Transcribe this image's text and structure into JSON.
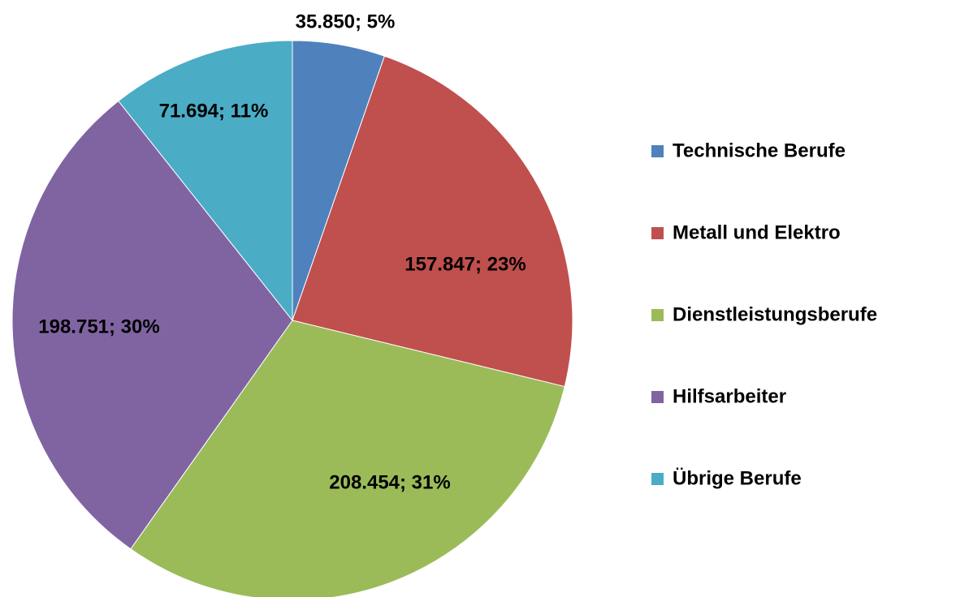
{
  "chart_data": {
    "type": "pie",
    "categories": [
      "Technische Berufe",
      "Metall und Elektro",
      "Dienstleistungsberufe",
      "Hilfsarbeiter",
      "Übrige Berufe"
    ],
    "values": [
      35850,
      157847,
      208454,
      198751,
      71694
    ],
    "value_labels": [
      "35.850; 5%",
      "157.847; 23%",
      "208.454; 31%",
      "198.751; 30%",
      "71.694; 11%"
    ],
    "colors": [
      "#4f81bd",
      "#c0504d",
      "#9bbb59",
      "#8064a2",
      "#4bacc6"
    ],
    "legend": "right"
  }
}
